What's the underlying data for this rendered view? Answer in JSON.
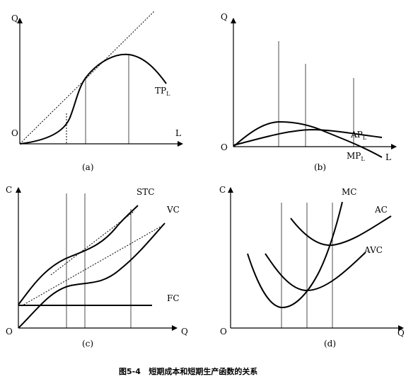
{
  "panel_a": {
    "y_axis": "Q",
    "x_axis": "L",
    "origin": "O",
    "curve_label": "TP",
    "curve_sub": "L",
    "caption": "(a)"
  },
  "panel_b": {
    "y_axis": "Q",
    "x_axis": "L",
    "origin": "O",
    "ap_label": "AP",
    "ap_sub": "L",
    "mp_label": "MP",
    "mp_sub": "L",
    "caption": "(b)"
  },
  "panel_c": {
    "y_axis": "C",
    "x_axis": "Q",
    "origin": "O",
    "stc_label": "STC",
    "vc_label": "VC",
    "fc_label": "FC",
    "caption": "(c)"
  },
  "panel_d": {
    "y_axis": "C",
    "x_axis": "Q",
    "origin": "O",
    "mc_label": "MC",
    "ac_label": "AC",
    "avc_label": "AVC",
    "caption": "(d)"
  },
  "figure_caption": "图5-4   短期成本和短期生产函数的关系"
}
